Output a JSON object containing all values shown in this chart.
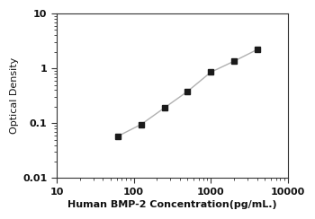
{
  "x": [
    62.5,
    125,
    250,
    500,
    1000,
    2000,
    4000
  ],
  "y": [
    0.058,
    0.095,
    0.19,
    0.38,
    0.85,
    1.35,
    2.2
  ],
  "xlim": [
    10,
    10000
  ],
  "ylim": [
    0.01,
    10
  ],
  "xlabel": "Human BMP-2 Concentration(pg/mL.)",
  "ylabel": "Optical Density",
  "line_color": "#b0b0b0",
  "marker_color": "#1a1a1a",
  "marker": "s",
  "marker_size": 4.5,
  "linewidth": 1.0,
  "xlabel_fontsize": 8.0,
  "ylabel_fontsize": 8.0,
  "tick_fontsize": 8.0,
  "background_color": "#ffffff",
  "xticks": [
    10,
    100,
    1000,
    10000
  ],
  "yticks": [
    0.01,
    0.1,
    1,
    10
  ],
  "ytick_labels": [
    "0.01",
    "0.1",
    "1",
    "10"
  ]
}
